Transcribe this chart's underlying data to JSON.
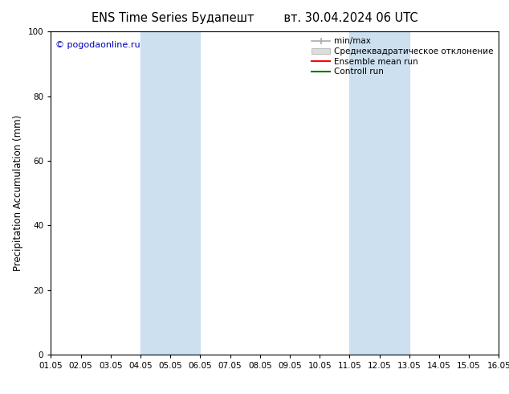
{
  "title_left": "ENS Time Series Будапешт",
  "title_right": "вт. 30.04.2024 06 UTC",
  "ylabel": "Precipitation Accumulation (mm)",
  "ylim": [
    0,
    100
  ],
  "xlim": [
    0,
    15
  ],
  "xtick_labels": [
    "01.05",
    "02.05",
    "03.05",
    "04.05",
    "05.05",
    "06.05",
    "07.05",
    "08.05",
    "09.05",
    "10.05",
    "11.05",
    "12.05",
    "13.05",
    "14.05",
    "15.05",
    "16.05"
  ],
  "xtick_positions": [
    0,
    1,
    2,
    3,
    4,
    5,
    6,
    7,
    8,
    9,
    10,
    11,
    12,
    13,
    14,
    15
  ],
  "ytick_labels": [
    "0",
    "20",
    "40",
    "60",
    "80",
    "100"
  ],
  "ytick_positions": [
    0,
    20,
    40,
    60,
    80,
    100
  ],
  "shaded_bands": [
    {
      "x_start": 3,
      "x_end": 5,
      "color": "#cce0f0"
    },
    {
      "x_start": 10,
      "x_end": 12,
      "color": "#cce0f0"
    }
  ],
  "copyright_text": "© pogodaonline.ru",
  "copyright_color": "#0000bb",
  "legend_entries": [
    {
      "label": "min/max",
      "color": "#999999",
      "type": "minmax"
    },
    {
      "label": "Среднеквадратическое отклонение",
      "color": "#cccccc",
      "type": "band"
    },
    {
      "label": "Ensemble mean run",
      "color": "#ff0000",
      "type": "line"
    },
    {
      "label": "Controll run",
      "color": "#007700",
      "type": "line"
    }
  ],
  "bg_color": "#ffffff",
  "title_fontsize": 10.5,
  "axis_fontsize": 8.5,
  "tick_fontsize": 7.5,
  "legend_fontsize": 7.5
}
